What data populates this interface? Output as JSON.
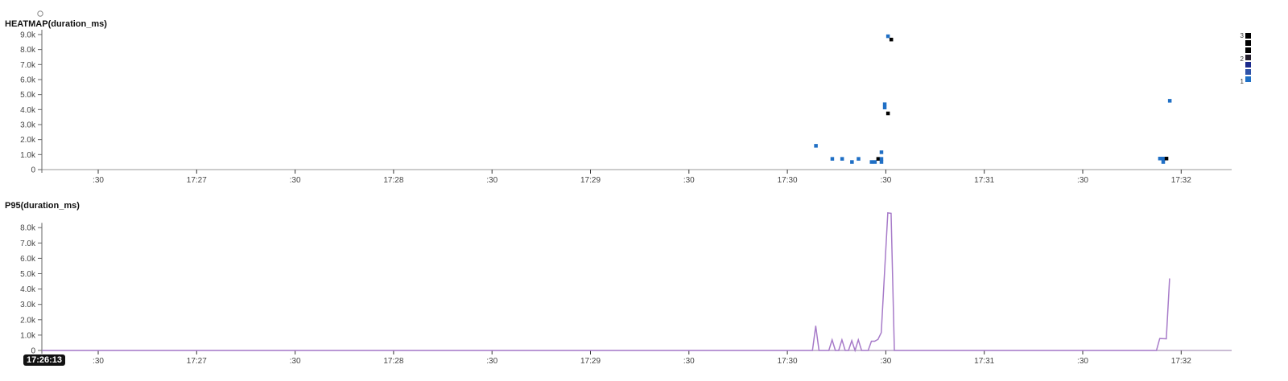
{
  "chart_data": [
    {
      "type": "heatmap",
      "title": "HEATMAP(duration_ms)",
      "x_ticks": [
        ":30",
        "17:27",
        ":30",
        "17:28",
        ":30",
        "17:29",
        ":30",
        "17:30",
        ":30",
        "17:31",
        ":30",
        "17:32"
      ],
      "y_ticks": [
        "0",
        "1.0k",
        "2.0k",
        "3.0k",
        "4.0k",
        "5.0k",
        "6.0k",
        "7.0k",
        "8.0k",
        "9.0k"
      ],
      "ylim": [
        0,
        9000
      ],
      "legend": {
        "position": "right",
        "labels": [
          "3",
          "2",
          "1"
        ],
        "colors": [
          "#000000",
          "#000000",
          "#000000",
          "#241f2e",
          "#1b2a8c",
          "#2f52a8",
          "#1f6fc5"
        ]
      },
      "count_colors": {
        "1": "#1f6fc5",
        "2": "#241f2e",
        "3": "#000000"
      },
      "cells": [
        {
          "t": "17:30:09",
          "v": 1600,
          "count": 1
        },
        {
          "t": "17:30:14",
          "v": 730,
          "count": 1
        },
        {
          "t": "17:30:17",
          "v": 730,
          "count": 1
        },
        {
          "t": "17:30:20",
          "v": 520,
          "count": 1
        },
        {
          "t": "17:30:22",
          "v": 730,
          "count": 1
        },
        {
          "t": "17:30:26",
          "v": 520,
          "count": 1
        },
        {
          "t": "17:30:27",
          "v": 520,
          "count": 1
        },
        {
          "t": "17:30:28",
          "v": 730,
          "count": 3
        },
        {
          "t": "17:30:29",
          "v": 730,
          "count": 1
        },
        {
          "t": "17:30:29",
          "v": 520,
          "count": 1
        },
        {
          "t": "17:30:29",
          "v": 1170,
          "count": 1
        },
        {
          "t": "17:30:30",
          "v": 4370,
          "count": 1
        },
        {
          "t": "17:30:30",
          "v": 4150,
          "count": 1
        },
        {
          "t": "17:30:31",
          "v": 3760,
          "count": 3
        },
        {
          "t": "17:30:31",
          "v": 8900,
          "count": 1
        },
        {
          "t": "17:30:32",
          "v": 8680,
          "count": 3
        },
        {
          "t": "17:31:54",
          "v": 750,
          "count": 1
        },
        {
          "t": "17:31:55",
          "v": 750,
          "count": 1
        },
        {
          "t": "17:31:55",
          "v": 520,
          "count": 1
        },
        {
          "t": "17:31:56",
          "v": 750,
          "count": 3
        },
        {
          "t": "17:31:57",
          "v": 4600,
          "count": 1
        }
      ]
    },
    {
      "type": "line",
      "title": "P95(duration_ms)",
      "x_ticks": [
        ":30",
        "17:27",
        ":30",
        "17:28",
        ":30",
        "17:29",
        ":30",
        "17:30",
        ":30",
        "17:31",
        ":30",
        "17:32"
      ],
      "y_ticks": [
        "0",
        "1.0k",
        "2.0k",
        "3.0k",
        "4.0k",
        "5.0k",
        "6.0k",
        "7.0k",
        "8.0k"
      ],
      "ylim": [
        0,
        9000
      ],
      "color": "#a77bc9",
      "x": [
        "17:26:13",
        "17:30:08",
        "17:30:09",
        "17:30:10",
        "17:30:13",
        "17:30:14",
        "17:30:15",
        "17:30:16",
        "17:30:17",
        "17:30:18",
        "17:30:19",
        "17:30:20",
        "17:30:21",
        "17:30:22",
        "17:30:23",
        "17:30:25",
        "17:30:26",
        "17:30:27",
        "17:30:28",
        "17:30:29",
        "17:30:31",
        "17:30:32",
        "17:30:33",
        "17:31:53",
        "17:31:54",
        "17:31:56",
        "17:31:57"
      ],
      "values": [
        0,
        0,
        1590,
        0,
        0,
        690,
        0,
        0,
        690,
        0,
        0,
        640,
        0,
        690,
        0,
        0,
        600,
        600,
        720,
        1160,
        8960,
        8930,
        0,
        0,
        780,
        760,
        4670
      ]
    }
  ],
  "cursor_time": "17:26:13"
}
